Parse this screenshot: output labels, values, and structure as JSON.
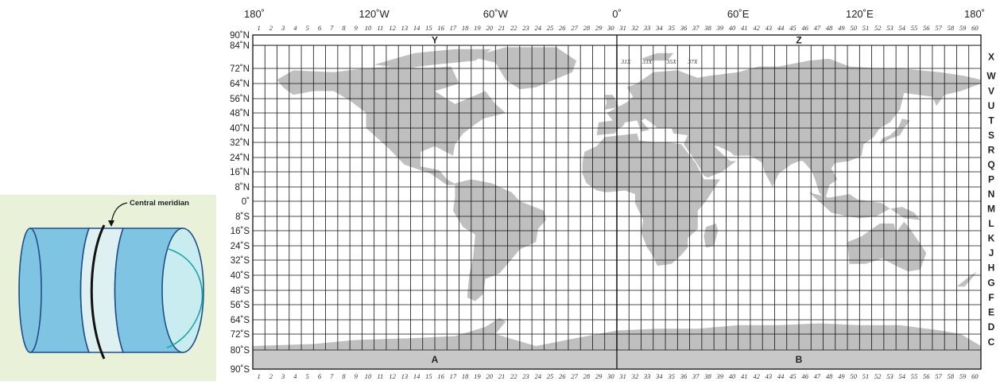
{
  "left_figure": {
    "label": "Central meridian"
  },
  "map": {
    "lon_labels_top": [
      {
        "lon": -180,
        "text": "180˚"
      },
      {
        "lon": -120,
        "text": "120˚W"
      },
      {
        "lon": -60,
        "text": "60˚W"
      },
      {
        "lon": 0,
        "text": "0˚"
      },
      {
        "lon": 60,
        "text": "60˚E"
      },
      {
        "lon": 120,
        "text": "120˚E"
      },
      {
        "lon": 180,
        "text": "180˚"
      }
    ],
    "lat_labels": [
      {
        "lat": 90,
        "text": "90˚N"
      },
      {
        "lat": 84,
        "text": "84˚N"
      },
      {
        "lat": 72,
        "text": "72˚N"
      },
      {
        "lat": 64,
        "text": "64˚N"
      },
      {
        "lat": 56,
        "text": "56˚N"
      },
      {
        "lat": 48,
        "text": "48˚N"
      },
      {
        "lat": 40,
        "text": "40˚N"
      },
      {
        "lat": 32,
        "text": "32˚N"
      },
      {
        "lat": 24,
        "text": "24˚N"
      },
      {
        "lat": 16,
        "text": "16˚N"
      },
      {
        "lat": 8,
        "text": "8˚N"
      },
      {
        "lat": 0,
        "text": "0˚"
      },
      {
        "lat": -8,
        "text": "8˚S"
      },
      {
        "lat": -16,
        "text": "16˚S"
      },
      {
        "lat": -24,
        "text": "24˚S"
      },
      {
        "lat": -32,
        "text": "32˚S"
      },
      {
        "lat": -40,
        "text": "40˚S"
      },
      {
        "lat": -48,
        "text": "48˚S"
      },
      {
        "lat": -56,
        "text": "56˚S"
      },
      {
        "lat": -64,
        "text": "64˚S"
      },
      {
        "lat": -72,
        "text": "72˚S"
      },
      {
        "lat": -80,
        "text": "80˚S"
      },
      {
        "lat": -90,
        "text": "90˚S"
      }
    ],
    "zone_count": 60,
    "zone_numbers": [
      "1",
      "2",
      "3",
      "4",
      "5",
      "6",
      "7",
      "8",
      "9",
      "10",
      "11",
      "12",
      "13",
      "14",
      "15",
      "16",
      "17",
      "18",
      "19",
      "20",
      "21",
      "22",
      "23",
      "24",
      "25",
      "26",
      "27",
      "28",
      "29",
      "30",
      "31",
      "32",
      "33",
      "34",
      "35",
      "36",
      "37",
      "38",
      "39",
      "40",
      "41",
      "42",
      "43",
      "44",
      "45",
      "46",
      "47",
      "48",
      "49",
      "50",
      "51",
      "52",
      "53",
      "54",
      "55",
      "56",
      "57",
      "58",
      "59",
      "60"
    ],
    "latitude_bands": [
      {
        "letter": "X",
        "south": 72,
        "north": 84
      },
      {
        "letter": "W",
        "south": 64,
        "north": 72
      },
      {
        "letter": "V",
        "south": 56,
        "north": 64
      },
      {
        "letter": "U",
        "south": 48,
        "north": 56
      },
      {
        "letter": "T",
        "south": 40,
        "north": 48
      },
      {
        "letter": "S",
        "south": 32,
        "north": 40
      },
      {
        "letter": "R",
        "south": 24,
        "north": 32
      },
      {
        "letter": "Q",
        "south": 16,
        "north": 24
      },
      {
        "letter": "P",
        "south": 8,
        "north": 16
      },
      {
        "letter": "N",
        "south": 0,
        "north": 8
      },
      {
        "letter": "M",
        "south": -8,
        "north": 0
      },
      {
        "letter": "L",
        "south": -16,
        "north": -8
      },
      {
        "letter": "K",
        "south": -24,
        "north": -16
      },
      {
        "letter": "J",
        "south": -32,
        "north": -24
      },
      {
        "letter": "H",
        "south": -40,
        "north": -32
      },
      {
        "letter": "G",
        "south": -48,
        "north": -40
      },
      {
        "letter": "F",
        "south": -56,
        "north": -48
      },
      {
        "letter": "E",
        "south": -64,
        "north": -56
      },
      {
        "letter": "D",
        "south": -72,
        "north": -64
      },
      {
        "letter": "C",
        "south": -80,
        "north": -72
      }
    ],
    "polar_labels": {
      "Y": "Y",
      "Z": "Z",
      "A": "A",
      "B": "B"
    },
    "special_zones": [
      {
        "text": "31X",
        "lon_min": 0,
        "lon_max": 9
      },
      {
        "text": "33X",
        "lon_min": 9,
        "lon_max": 21
      },
      {
        "text": "35X",
        "lon_min": 21,
        "lon_max": 33
      },
      {
        "text": "37X",
        "lon_min": 33,
        "lon_max": 42
      }
    ],
    "colors": {
      "land": "#bfbfbf",
      "polar_fill": "#c8c8c8",
      "grid": "#111111",
      "ocean": "#ffffff"
    }
  }
}
